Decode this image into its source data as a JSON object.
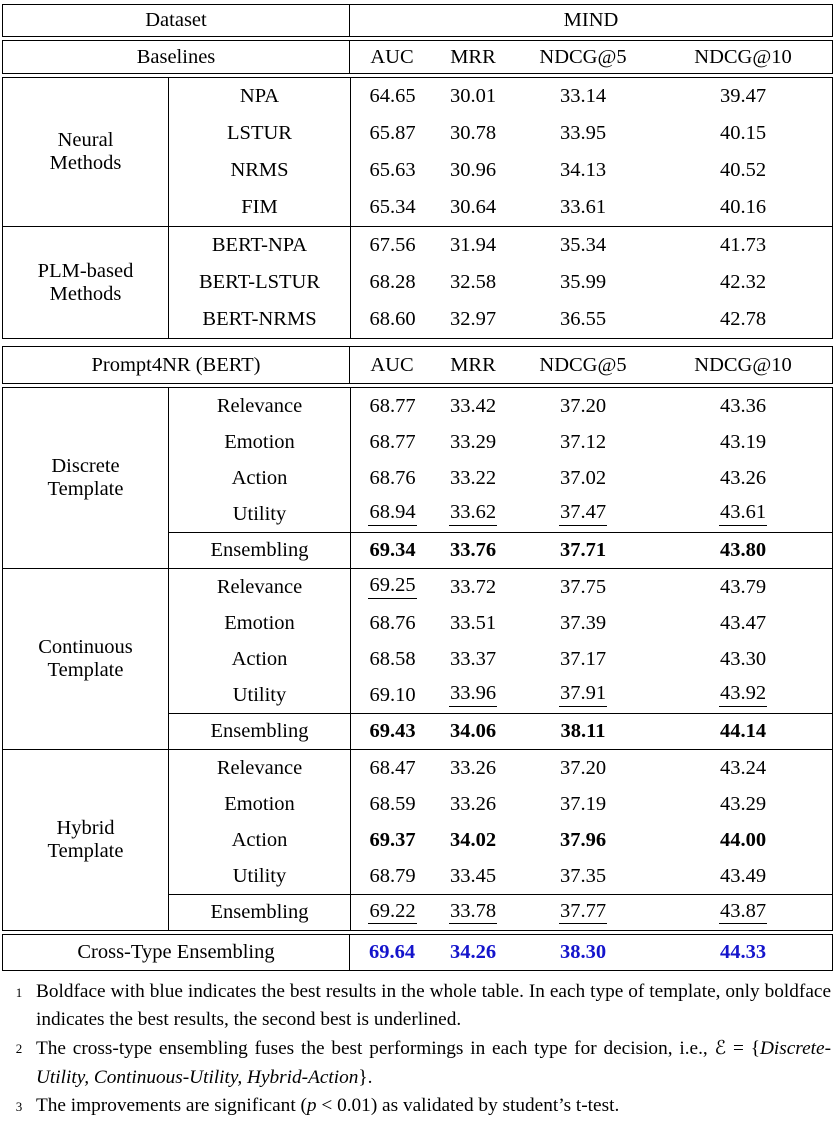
{
  "colors": {
    "best_overall_blue": "#1414cc",
    "text": "#000000",
    "background": "#ffffff"
  },
  "table": {
    "dataset_header": {
      "label": "Dataset",
      "value": "MIND"
    },
    "baselines_header": {
      "label": "Baselines",
      "metrics": [
        "AUC",
        "MRR",
        "NDCG@5",
        "NDCG@10"
      ]
    },
    "prompt_header": {
      "label": "Prompt4NR (BERT)",
      "metrics": [
        "AUC",
        "MRR",
        "NDCG@5",
        "NDCG@10"
      ]
    },
    "baseline_groups": [
      {
        "label": "Neural Methods",
        "rows": [
          {
            "method": "NPA",
            "values": [
              "64.65",
              "30.01",
              "33.14",
              "39.47"
            ]
          },
          {
            "method": "LSTUR",
            "values": [
              "65.87",
              "30.78",
              "33.95",
              "40.15"
            ]
          },
          {
            "method": "NRMS",
            "values": [
              "65.63",
              "30.96",
              "34.13",
              "40.52"
            ]
          },
          {
            "method": "FIM",
            "values": [
              "65.34",
              "30.64",
              "33.61",
              "40.16"
            ]
          }
        ]
      },
      {
        "label": "PLM-based Methods",
        "rows": [
          {
            "method": "BERT-NPA",
            "values": [
              "67.56",
              "31.94",
              "35.34",
              "41.73"
            ]
          },
          {
            "method": "BERT-LSTUR",
            "values": [
              "68.28",
              "32.58",
              "35.99",
              "42.32"
            ]
          },
          {
            "method": "BERT-NRMS",
            "values": [
              "68.60",
              "32.97",
              "36.55",
              "42.78"
            ]
          }
        ]
      }
    ],
    "template_sections": [
      {
        "label": "Discrete Template",
        "rows": [
          {
            "method": "Relevance",
            "values": [
              "68.77",
              "33.42",
              "37.20",
              "43.36"
            ]
          },
          {
            "method": "Emotion",
            "values": [
              "68.77",
              "33.29",
              "37.12",
              "43.19"
            ]
          },
          {
            "method": "Action",
            "values": [
              "68.76",
              "33.22",
              "37.02",
              "43.26"
            ]
          },
          {
            "method": "Utility",
            "values": [
              "68.94",
              "33.62",
              "37.47",
              "43.61"
            ]
          },
          {
            "method": "Ensembling",
            "values": [
              "69.34",
              "33.76",
              "37.71",
              "43.80"
            ]
          }
        ]
      },
      {
        "label": "Continuous Template",
        "rows": [
          {
            "method": "Relevance",
            "values": [
              "69.25",
              "33.72",
              "37.75",
              "43.79"
            ]
          },
          {
            "method": "Emotion",
            "values": [
              "68.76",
              "33.51",
              "37.39",
              "43.47"
            ]
          },
          {
            "method": "Action",
            "values": [
              "68.58",
              "33.37",
              "37.17",
              "43.30"
            ]
          },
          {
            "method": "Utility",
            "values": [
              "69.10",
              "33.96",
              "37.91",
              "43.92"
            ]
          },
          {
            "method": "Ensembling",
            "values": [
              "69.43",
              "34.06",
              "38.11",
              "44.14"
            ]
          }
        ]
      },
      {
        "label": "Hybrid Template",
        "rows": [
          {
            "method": "Relevance",
            "values": [
              "68.47",
              "33.26",
              "37.20",
              "43.24"
            ]
          },
          {
            "method": "Emotion",
            "values": [
              "68.59",
              "33.26",
              "37.19",
              "43.29"
            ]
          },
          {
            "method": "Action",
            "values": [
              "69.37",
              "34.02",
              "37.96",
              "44.00"
            ]
          },
          {
            "method": "Utility",
            "values": [
              "68.79",
              "33.45",
              "37.35",
              "43.49"
            ]
          },
          {
            "method": "Ensembling",
            "values": [
              "69.22",
              "33.78",
              "37.77",
              "43.87"
            ]
          }
        ]
      }
    ],
    "cross_type": {
      "label": "Cross-Type Ensembling",
      "values": [
        "69.64",
        "34.26",
        "38.30",
        "44.33"
      ]
    }
  },
  "footnotes": {
    "fn1": {
      "marker": "1",
      "text": "Boldface with blue indicates the best results in the whole table. In each type of template, only boldface indicates the best results, the second best is underlined."
    },
    "fn2": {
      "marker": "2",
      "text": "The cross-type ensembling fuses the best performings in each type for decision, i.e., ",
      "symbol": "ℰ",
      "eq": " = {",
      "set": "Discrete-Utility, Continuous-Utility, Hybrid-Action",
      "close": "}."
    },
    "fn3": {
      "marker": "3",
      "pre": "The improvements are significant (",
      "var": "p",
      "post": " < 0.01) as validated by student’s t-test."
    }
  }
}
